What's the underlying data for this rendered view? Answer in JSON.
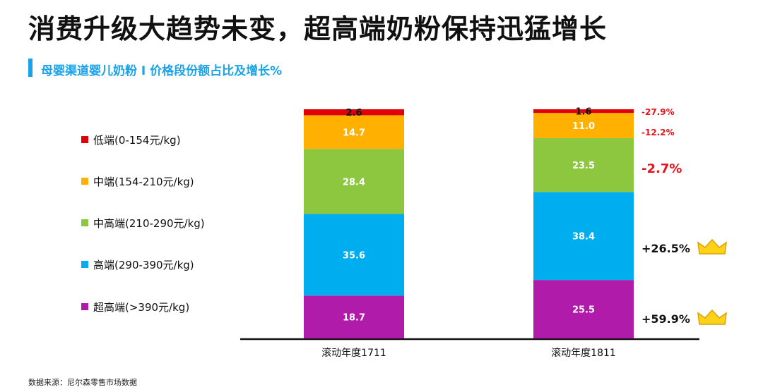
{
  "title": "消费升级大趋势未变，超高端奶粉保持迅猛增长",
  "subtitle": "母婴渠道婴儿奶粉 I 价格段份额占比及增长%",
  "source": "数据来源：尼尔森零售市场数据",
  "chart_data": {
    "type": "bar",
    "stacked": true,
    "categories": [
      "滚动年度1711",
      "滚动年度1811"
    ],
    "ylim": [
      0,
      100
    ],
    "legend_position": "left",
    "series": [
      {
        "name": "超高端(>390元/kg)",
        "color": "#B11BAA",
        "values": [
          18.7,
          25.5
        ],
        "growth": "+59.9%",
        "growth_color": "#111111",
        "icon": "crown-icon"
      },
      {
        "name": "高端(290-390元/kg)",
        "color": "#00AEEF",
        "values": [
          35.6,
          38.4
        ],
        "growth": "+26.5%",
        "growth_color": "#111111",
        "icon": "crown-icon"
      },
      {
        "name": "中高端(210-290元/kg)",
        "color": "#8DC63F",
        "values": [
          28.4,
          23.5
        ],
        "growth": "-2.7%",
        "growth_color": "#E8141B"
      },
      {
        "name": "中端(154-210元/kg)",
        "color": "#FFB000",
        "values": [
          14.7,
          11.0
        ],
        "growth": "-12.2%",
        "growth_color": "#E8141B"
      },
      {
        "name": "低端(0-154元/kg)",
        "color": "#E0000B",
        "values": [
          2.6,
          1.6
        ],
        "growth": "-27.9%",
        "growth_color": "#E8141B"
      }
    ]
  }
}
